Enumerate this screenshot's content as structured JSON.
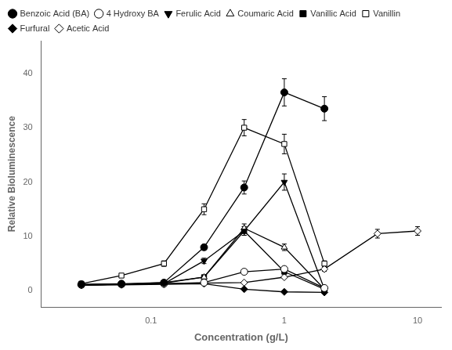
{
  "chart_data": {
    "type": "line",
    "xlabel": "Concentration (g/L)",
    "ylabel": "Relative Bioluminescence",
    "log": "x",
    "xlim": [
      0.015,
      15
    ],
    "xticks": [
      0.1,
      1,
      10
    ],
    "ylim": [
      -3,
      46
    ],
    "yticks": [
      0,
      10,
      20,
      30,
      40
    ],
    "grid": false,
    "legend": "upper left",
    "color": "#000000",
    "series": [
      {
        "name": "Benzoic Acid (BA)",
        "marker": "circle",
        "x": [
          0.03,
          0.06,
          0.125,
          0.25,
          0.5,
          1.0,
          2.0
        ],
        "values": [
          1.2,
          1.3,
          1.5,
          8.0,
          19.0,
          36.5,
          33.5
        ],
        "yerr": [
          0.15,
          0.15,
          0.2,
          0.5,
          1.2,
          2.5,
          2.2
        ]
      },
      {
        "name": "4 Hydroxy BA",
        "marker": "circle-open",
        "x": [
          0.03,
          0.06,
          0.125,
          0.25,
          0.5,
          1.0,
          2.0
        ],
        "values": [
          1.1,
          1.2,
          1.3,
          1.5,
          3.5,
          4.0,
          0.5
        ],
        "yerr": [
          0.1,
          0.1,
          0.1,
          0.2,
          0.3,
          0.4,
          0.1
        ]
      },
      {
        "name": "Ferulic Acid",
        "marker": "triangle_down",
        "x": [
          0.03,
          0.06,
          0.125,
          0.25,
          0.5,
          1.0,
          2.0
        ],
        "values": [
          1.1,
          1.2,
          1.3,
          5.5,
          11.0,
          20.0,
          0.3
        ],
        "yerr": [
          0.1,
          0.1,
          0.2,
          0.5,
          0.8,
          1.5,
          0.1
        ]
      },
      {
        "name": "Coumaric Acid",
        "marker": "triangle_up-open",
        "x": [
          0.03,
          0.06,
          0.125,
          0.25,
          0.5,
          1.0,
          2.0
        ],
        "values": [
          1.1,
          1.2,
          1.5,
          2.5,
          11.5,
          8.0,
          0.3
        ],
        "yerr": [
          0.1,
          0.1,
          0.2,
          0.3,
          0.8,
          0.6,
          0.1
        ]
      },
      {
        "name": "Vanillic Acid",
        "marker": "square",
        "x": [
          0.03,
          0.06,
          0.125,
          0.25,
          0.5,
          1.0,
          2.0
        ],
        "values": [
          1.1,
          1.2,
          1.4,
          2.5,
          11.0,
          3.5,
          0.3
        ],
        "yerr": [
          0.1,
          0.1,
          0.2,
          0.3,
          0.8,
          0.3,
          0.1
        ]
      },
      {
        "name": "Vanillin",
        "marker": "square-open",
        "x": [
          0.03,
          0.06,
          0.125,
          0.25,
          0.5,
          1.0,
          2.0
        ],
        "values": [
          1.3,
          2.8,
          5.0,
          15.0,
          30.0,
          27.0,
          5.0
        ],
        "yerr": [
          0.15,
          0.3,
          0.5,
          1.0,
          1.5,
          1.8,
          0.5
        ]
      },
      {
        "name": "Furfural",
        "marker": "diamond",
        "x": [
          0.03,
          0.06,
          0.125,
          0.25,
          0.5,
          1.0,
          2.0
        ],
        "values": [
          1.0,
          1.1,
          1.2,
          1.3,
          0.3,
          -0.2,
          -0.3
        ],
        "yerr": [
          0.1,
          0.1,
          0.1,
          0.1,
          0.05,
          0.05,
          0.05
        ]
      },
      {
        "name": "Acetic Acid",
        "marker": "diamond-open",
        "x": [
          0.03,
          0.5,
          1.0,
          2.0,
          5.0,
          10.0
        ],
        "values": [
          1.1,
          1.5,
          2.5,
          4.0,
          10.5,
          11.0
        ],
        "yerr": [
          0.1,
          0.15,
          0.2,
          0.4,
          0.8,
          0.8
        ]
      }
    ]
  }
}
